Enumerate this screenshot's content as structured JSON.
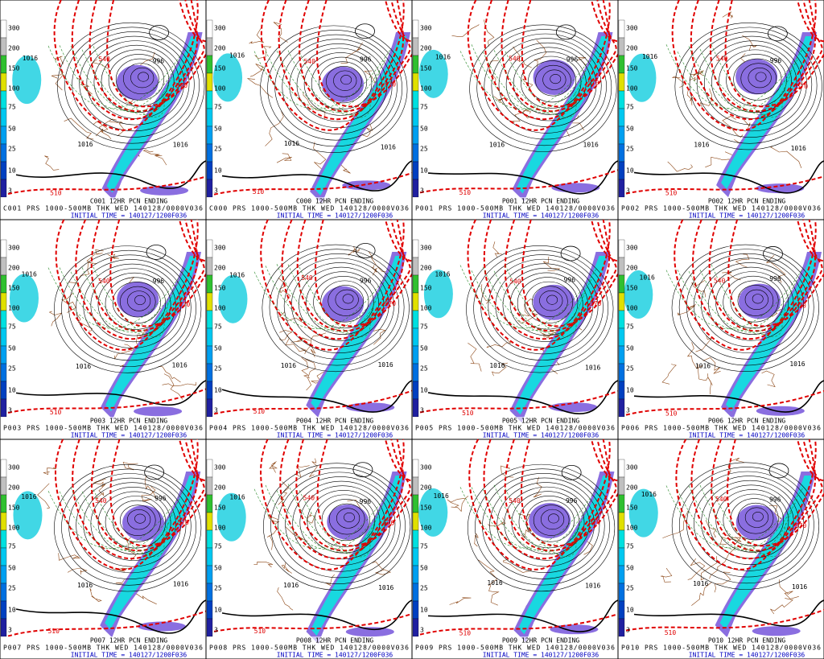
{
  "panels": [
    {
      "caption_top": "C001 12HR PCN ENDING",
      "caption_mid": "C001 PRS 1000-500MB THK WED 140128/0000V036",
      "caption_init": "INITIAL TIME = 140127/1200F036"
    },
    {
      "caption_top": "C000 12HR PCN ENDING",
      "caption_mid": "C000 PRS 1000-500MB THK WED 140128/0000V036",
      "caption_init": "INITIAL TIME = 140127/1200F036"
    },
    {
      "caption_top": "P001 12HR PCN ENDING",
      "caption_mid": "P001 PRS 1000-500MB THK WED 140128/0000V036",
      "caption_init": "INITIAL TIME = 140127/1200F036"
    },
    {
      "caption_top": "P002 12HR PCN ENDING",
      "caption_mid": "P002 PRS 1000-500MB THK WED 140128/0000V036",
      "caption_init": "INITIAL TIME = 140127/1200F036"
    },
    {
      "caption_top": "P003 12HR PCN ENDING",
      "caption_mid": "P003 PRS 1000-500MB THK WED 140128/0000V036",
      "caption_init": "INITIAL TIME = 140127/1200F036"
    },
    {
      "caption_top": "P004 12HR PCN ENDING",
      "caption_mid": "P004 PRS 1000-500MB THK WED 140128/0000V036",
      "caption_init": "INITIAL TIME = 140127/1200F036"
    },
    {
      "caption_top": "P005 12HR PCN ENDING",
      "caption_mid": "P005 PRS 1000-500MB THK WED 140128/0000V036",
      "caption_init": "INITIAL TIME = 140127/1200F036"
    },
    {
      "caption_top": "P006 12HR PCN ENDING",
      "caption_mid": "P006 PRS 1000-500MB THK WED 140128/0000V036",
      "caption_init": "INITIAL TIME = 140127/1200F036"
    },
    {
      "caption_top": "P007 12HR PCN ENDING",
      "caption_mid": "P007 PRS 1000-500MB THK WED 140128/0000V036",
      "caption_init": "INITIAL TIME = 140127/1200F036"
    },
    {
      "caption_top": "P008 12HR PCN ENDING",
      "caption_mid": "P008 PRS 1000-500MB THK WED 140128/0000V036",
      "caption_init": "INITIAL TIME = 140127/1200F036"
    },
    {
      "caption_top": "P009 12HR PCN ENDING",
      "caption_mid": "P009 PRS 1000-500MB THK WED 140128/0000V036",
      "caption_init": "INITIAL TIME = 140127/1200F036"
    },
    {
      "caption_top": "P010 12HR PCN ENDING",
      "caption_mid": "P010 PRS 1000-500MB THK WED 140128/0000V036",
      "caption_init": "INITIAL TIME = 140127/1200F036"
    }
  ],
  "colorbar_labels": [
    "300",
    "200",
    "150",
    "100",
    "75",
    "50",
    "25",
    "10",
    "3"
  ],
  "contour_labels": [
    "1016",
    "996",
    "1016",
    "1016",
    "570",
    "540",
    "510"
  ]
}
